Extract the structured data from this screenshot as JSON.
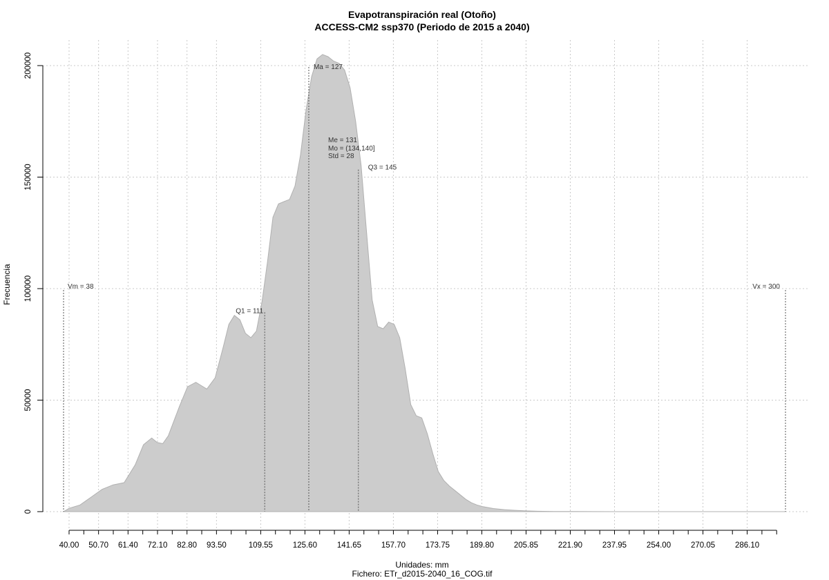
{
  "chart_data": {
    "type": "area",
    "title": "Evapotranspiración real (Otoño)",
    "subtitle": "ACCESS-CM2 ssp370 (Periodo de 2015 a 2040)",
    "xlabel": "Unidades: mm",
    "ylabel": "Frecuencia",
    "caption": "Fichero: ETr_d2015-2040_16_COG.tif",
    "xlim": [
      38,
      300
    ],
    "ylim": [
      0,
      205000
    ],
    "x_ticks": [
      "40.00",
      "50.70",
      "61.40",
      "72.10",
      "82.80",
      "93.50",
      "109.55",
      "125.60",
      "141.65",
      "157.70",
      "173.75",
      "189.80",
      "205.85",
      "221.90",
      "237.95",
      "254.00",
      "270.05",
      "286.10"
    ],
    "y_ticks": [
      "0",
      "50000",
      "100000",
      "150000",
      "200000"
    ],
    "grid": true,
    "fill_color": "#cccccc",
    "line_color": "#b0b0b0",
    "series": [
      {
        "x": [
          38,
          40,
          44,
          48,
          52,
          56,
          60,
          64,
          67,
          70,
          72,
          74,
          76,
          80,
          83,
          86,
          88,
          90,
          93,
          96,
          98,
          100,
          102,
          104,
          106,
          108,
          110,
          112,
          114,
          116,
          118,
          120,
          122,
          124,
          126,
          128,
          130,
          132,
          134,
          136,
          138,
          140,
          142,
          144,
          146,
          148,
          150,
          152,
          154,
          156,
          158,
          160,
          162,
          164,
          166,
          168,
          170,
          172,
          174,
          176,
          178,
          180,
          182,
          184,
          186,
          188,
          190,
          194,
          198,
          202,
          206,
          210,
          216,
          222,
          230,
          240,
          260,
          280,
          300
        ],
        "y": [
          0,
          1500,
          3000,
          6500,
          10000,
          12000,
          13000,
          21000,
          30000,
          33000,
          31000,
          30500,
          34000,
          47000,
          56000,
          58000,
          56500,
          55000,
          60000,
          74000,
          84000,
          88000,
          86000,
          80000,
          78000,
          81000,
          94000,
          112000,
          132000,
          138000,
          139000,
          140000,
          146000,
          160000,
          180000,
          195000,
          203000,
          205000,
          204000,
          202000,
          201000,
          198000,
          190000,
          175000,
          155000,
          125000,
          95000,
          83000,
          82000,
          85000,
          84000,
          78000,
          64000,
          48000,
          43000,
          42000,
          35000,
          26000,
          18000,
          14000,
          11500,
          9500,
          7500,
          5500,
          4000,
          3000,
          2300,
          1400,
          900,
          600,
          350,
          200,
          100,
          50,
          20,
          10,
          5,
          2,
          0
        ]
      }
    ],
    "markers": [
      {
        "label": "Vm = 38",
        "value": 38,
        "frac": 0.5
      },
      {
        "label": "Q1 = 111",
        "value": 111,
        "frac": 0.45
      },
      {
        "label": "Ma = 127",
        "value": 127,
        "frac": 1.0
      },
      {
        "label": "Q3 = 145",
        "value": 145,
        "frac": 0.77
      },
      {
        "label": "Vx = 300",
        "value": 300,
        "frac": 0.5
      }
    ],
    "stats_block": [
      "Me = 131",
      "Mo = (134,140]",
      "Std = 28"
    ]
  }
}
